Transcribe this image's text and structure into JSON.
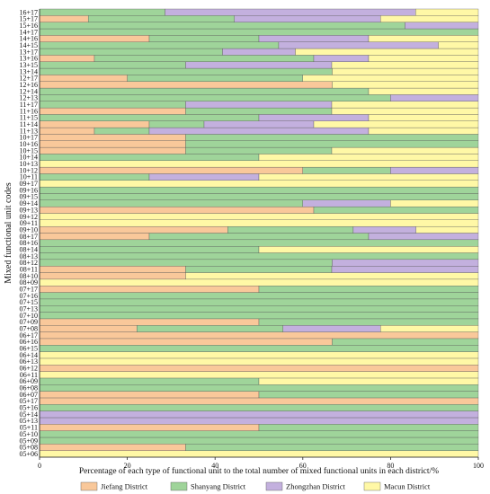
{
  "chart_data": {
    "type": "bar",
    "orientation": "horizontal",
    "stacked": true,
    "xlabel": "Percentage of each type of functional unit to the total number of mixed functional units in each district/%",
    "ylabel": "Mixed functional unit codes",
    "xlim": [
      0,
      100
    ],
    "xticks": [
      0,
      20,
      40,
      60,
      80,
      100
    ],
    "legend_position": "bottom",
    "series": [
      {
        "name": "Jiefang District",
        "color": "#f9c89a"
      },
      {
        "name": "Shanyang District",
        "color": "#9fd49a"
      },
      {
        "name": "Zhongzhan District",
        "color": "#c3b0de"
      },
      {
        "name": "Macun District",
        "color": "#fff8a6"
      }
    ],
    "categories": [
      "05+06",
      "05+08",
      "05+09",
      "05+10",
      "05+11",
      "05+13",
      "05+14",
      "05+16",
      "05+17",
      "06+07",
      "06+08",
      "06+09",
      "06+11",
      "06+12",
      "06+13",
      "06+14",
      "06+15",
      "06+16",
      "06+17",
      "07+08",
      "07+09",
      "07+10",
      "07+13",
      "07+15",
      "07+16",
      "07+17",
      "08+09",
      "08+10",
      "08+11",
      "08+12",
      "08+13",
      "08+14",
      "08+16",
      "08+17",
      "09+10",
      "09+11",
      "09+12",
      "09+13",
      "09+14",
      "09+15",
      "09+16",
      "09+17",
      "10+11",
      "10+12",
      "10+13",
      "10+14",
      "10+15",
      "10+16",
      "10+17",
      "11+13",
      "11+14",
      "11+15",
      "11+16",
      "11+17",
      "12+13",
      "12+14",
      "12+16",
      "12+17",
      "13+14",
      "13+15",
      "13+16",
      "13+17",
      "14+15",
      "14+16",
      "14+17",
      "15+16",
      "15+17",
      "16+17"
    ],
    "values": [
      [
        0,
        0,
        0,
        100
      ],
      [
        33.3,
        66.7,
        0,
        0
      ],
      [
        0,
        100,
        0,
        0
      ],
      [
        0,
        100,
        0,
        0
      ],
      [
        50,
        50,
        0,
        0
      ],
      [
        0,
        0,
        100,
        0
      ],
      [
        0,
        0,
        100,
        0
      ],
      [
        0,
        100,
        0,
        0
      ],
      [
        100,
        0,
        0,
        0
      ],
      [
        50,
        50,
        0,
        0
      ],
      [
        0,
        100,
        0,
        0
      ],
      [
        0,
        50,
        0,
        50
      ],
      [
        0,
        0,
        0,
        100
      ],
      [
        100,
        0,
        0,
        0
      ],
      [
        0,
        0,
        0,
        100
      ],
      [
        0,
        0,
        0,
        100
      ],
      [
        0,
        100,
        0,
        0
      ],
      [
        66.7,
        33.3,
        0,
        0
      ],
      [
        100,
        0,
        0,
        0
      ],
      [
        22.2,
        33.3,
        22.2,
        22.3
      ],
      [
        50,
        50,
        0,
        0
      ],
      [
        0,
        100,
        0,
        0
      ],
      [
        0,
        100,
        0,
        0
      ],
      [
        0,
        100,
        0,
        0
      ],
      [
        0,
        100,
        0,
        0
      ],
      [
        50,
        50,
        0,
        0
      ],
      [
        0,
        0,
        0,
        100
      ],
      [
        33.3,
        0,
        0,
        66.7
      ],
      [
        33.3,
        33.3,
        33.4,
        0
      ],
      [
        0,
        66.7,
        33.3,
        0
      ],
      [
        0,
        100,
        0,
        0
      ],
      [
        0,
        50,
        0,
        50
      ],
      [
        0,
        100,
        0,
        0
      ],
      [
        25,
        50,
        25,
        0
      ],
      [
        42.9,
        28.6,
        14.3,
        14.2
      ],
      [
        0,
        0,
        0,
        100
      ],
      [
        0,
        0,
        0,
        100
      ],
      [
        62.5,
        37.5,
        0,
        0
      ],
      [
        0,
        60,
        20,
        20
      ],
      [
        0,
        100,
        0,
        0
      ],
      [
        0,
        100,
        0,
        0
      ],
      [
        0,
        0,
        0,
        100
      ],
      [
        0,
        25,
        25,
        50
      ],
      [
        60,
        20,
        20,
        0
      ],
      [
        0,
        0,
        0,
        100
      ],
      [
        0,
        50,
        0,
        50
      ],
      [
        33.3,
        33.3,
        0,
        33.4
      ],
      [
        33.3,
        66.7,
        0,
        0
      ],
      [
        33.3,
        66.7,
        0,
        0
      ],
      [
        12.5,
        12.5,
        50,
        25
      ],
      [
        25,
        12.5,
        25,
        37.5
      ],
      [
        0,
        50,
        25,
        25
      ],
      [
        33.3,
        33.3,
        0,
        33.4
      ],
      [
        0,
        33.3,
        33.3,
        33.4
      ],
      [
        0,
        80,
        20,
        0
      ],
      [
        0,
        75,
        0,
        25
      ],
      [
        66.7,
        0,
        0,
        33.3
      ],
      [
        20,
        40,
        0,
        40
      ],
      [
        0,
        66.7,
        0,
        33.3
      ],
      [
        0,
        33.3,
        33.3,
        33.4
      ],
      [
        12.5,
        50,
        12.5,
        25
      ],
      [
        0,
        41.7,
        16.6,
        41.7
      ],
      [
        0,
        54.5,
        36.4,
        9.1
      ],
      [
        25,
        25,
        25,
        25
      ],
      [
        0,
        100,
        0,
        0
      ],
      [
        0,
        83.3,
        16.7,
        0
      ],
      [
        11.1,
        33.3,
        33.3,
        22.3
      ],
      [
        0,
        28.6,
        57.1,
        14.3
      ]
    ]
  }
}
